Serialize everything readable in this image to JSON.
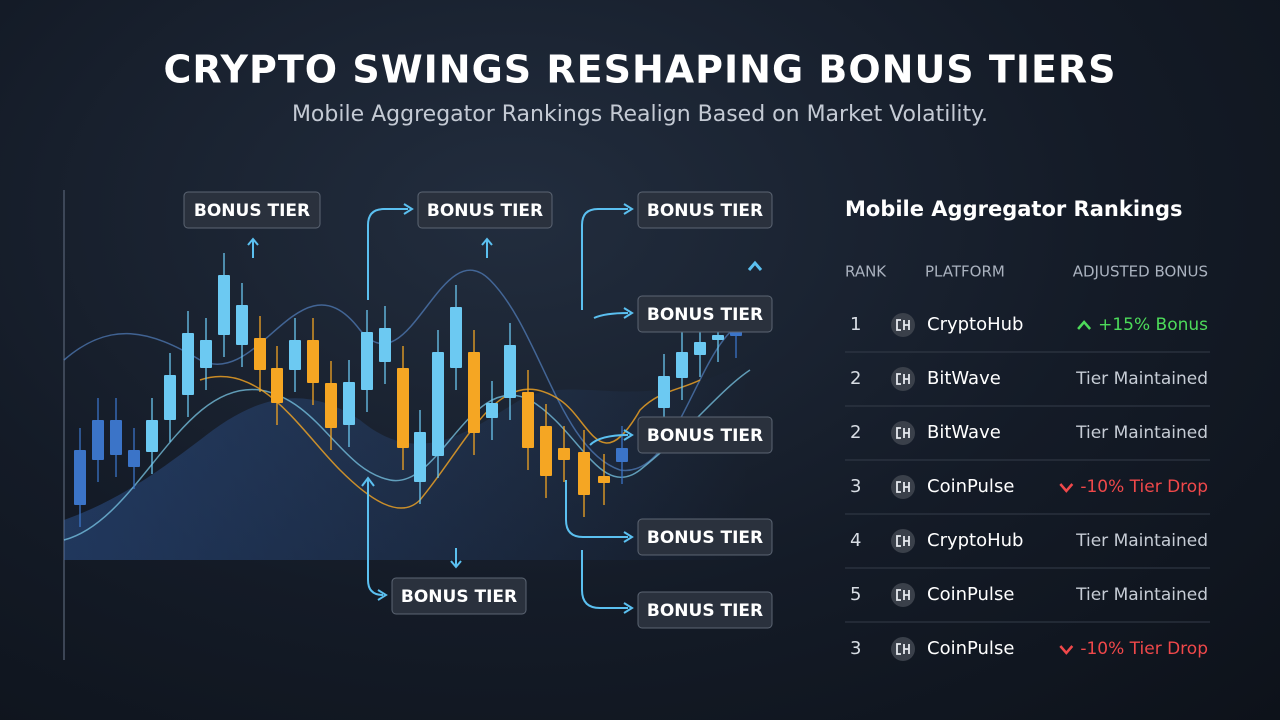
{
  "header": {
    "title": "CRYPTO SWINGS RESHAPING BONUS TIERS",
    "subtitle": "Mobile Aggregator Rankings Realign Based on Market Volatility."
  },
  "chart": {
    "labels": [
      "BONUS TIER",
      "BONUS TIER",
      "BONUS TIER",
      "BONUS TIER",
      "BONUS TIER",
      "BONUS TIER",
      "BONUS TIER",
      "BONUS TIER"
    ]
  },
  "rankings": {
    "title": "Mobile Aggregator Rankings",
    "columns": [
      "RANK",
      "PLATFORM",
      "ADJUSTED BONUS"
    ],
    "rows": [
      {
        "rank": 1,
        "platform": "CryptoHub",
        "bonus": "+15% Bonus",
        "trend": "up"
      },
      {
        "rank": 2,
        "platform": "BitWave",
        "bonus": "Tier Maintained",
        "trend": "none"
      },
      {
        "rank": 2,
        "platform": "BitWave",
        "bonus": "Tier Maintained",
        "trend": "none"
      },
      {
        "rank": 3,
        "platform": "CoinPulse",
        "bonus": "-10% Tier Drop",
        "trend": "down"
      },
      {
        "rank": 4,
        "platform": "CryptoHub",
        "bonus": "Tier Maintained",
        "trend": "none"
      },
      {
        "rank": 5,
        "platform": "CoinPulse",
        "bonus": "Tier Maintained",
        "trend": "none"
      },
      {
        "rank": 3,
        "platform": "CoinPulse",
        "bonus": "-10% Tier Drop",
        "trend": "down"
      }
    ]
  }
}
